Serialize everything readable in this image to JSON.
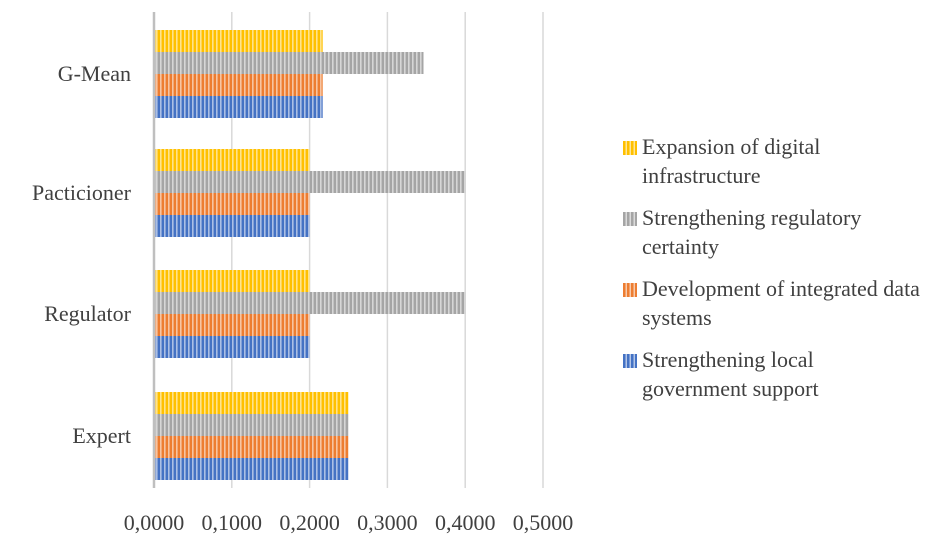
{
  "chart_data": {
    "type": "bar",
    "orientation": "horizontal",
    "categories": [
      "Expert",
      "Regulator",
      "Pacticioner",
      "G-Mean"
    ],
    "series": [
      {
        "name": "Strengthening local government support",
        "color": "#4472C4",
        "values": [
          0.25,
          0.2,
          0.2,
          0.2168
        ]
      },
      {
        "name": "Development of integrated data systems",
        "color": "#ED7D31",
        "values": [
          0.25,
          0.2,
          0.2,
          0.2168
        ]
      },
      {
        "name": "Strengthening regulatory certainty",
        "color": "#A5A5A5",
        "values": [
          0.25,
          0.4,
          0.4,
          0.3464
        ]
      },
      {
        "name": "Expansion of digital infrastructure",
        "color": "#FFC000",
        "values": [
          0.25,
          0.2,
          0.2,
          0.2168
        ]
      }
    ],
    "x_ticks": [
      "0,0000",
      "0,1000",
      "0,2000",
      "0,3000",
      "0,4000",
      "0,5000"
    ],
    "xlim": [
      0,
      0.5
    ],
    "grid": true,
    "legend_position": "right",
    "legend_order": [
      "Expansion of digital infrastructure",
      "Strengthening regulatory certainty",
      "Development of integrated data systems",
      "Strengthening local government support"
    ],
    "title": "",
    "xlabel": "",
    "ylabel": ""
  }
}
